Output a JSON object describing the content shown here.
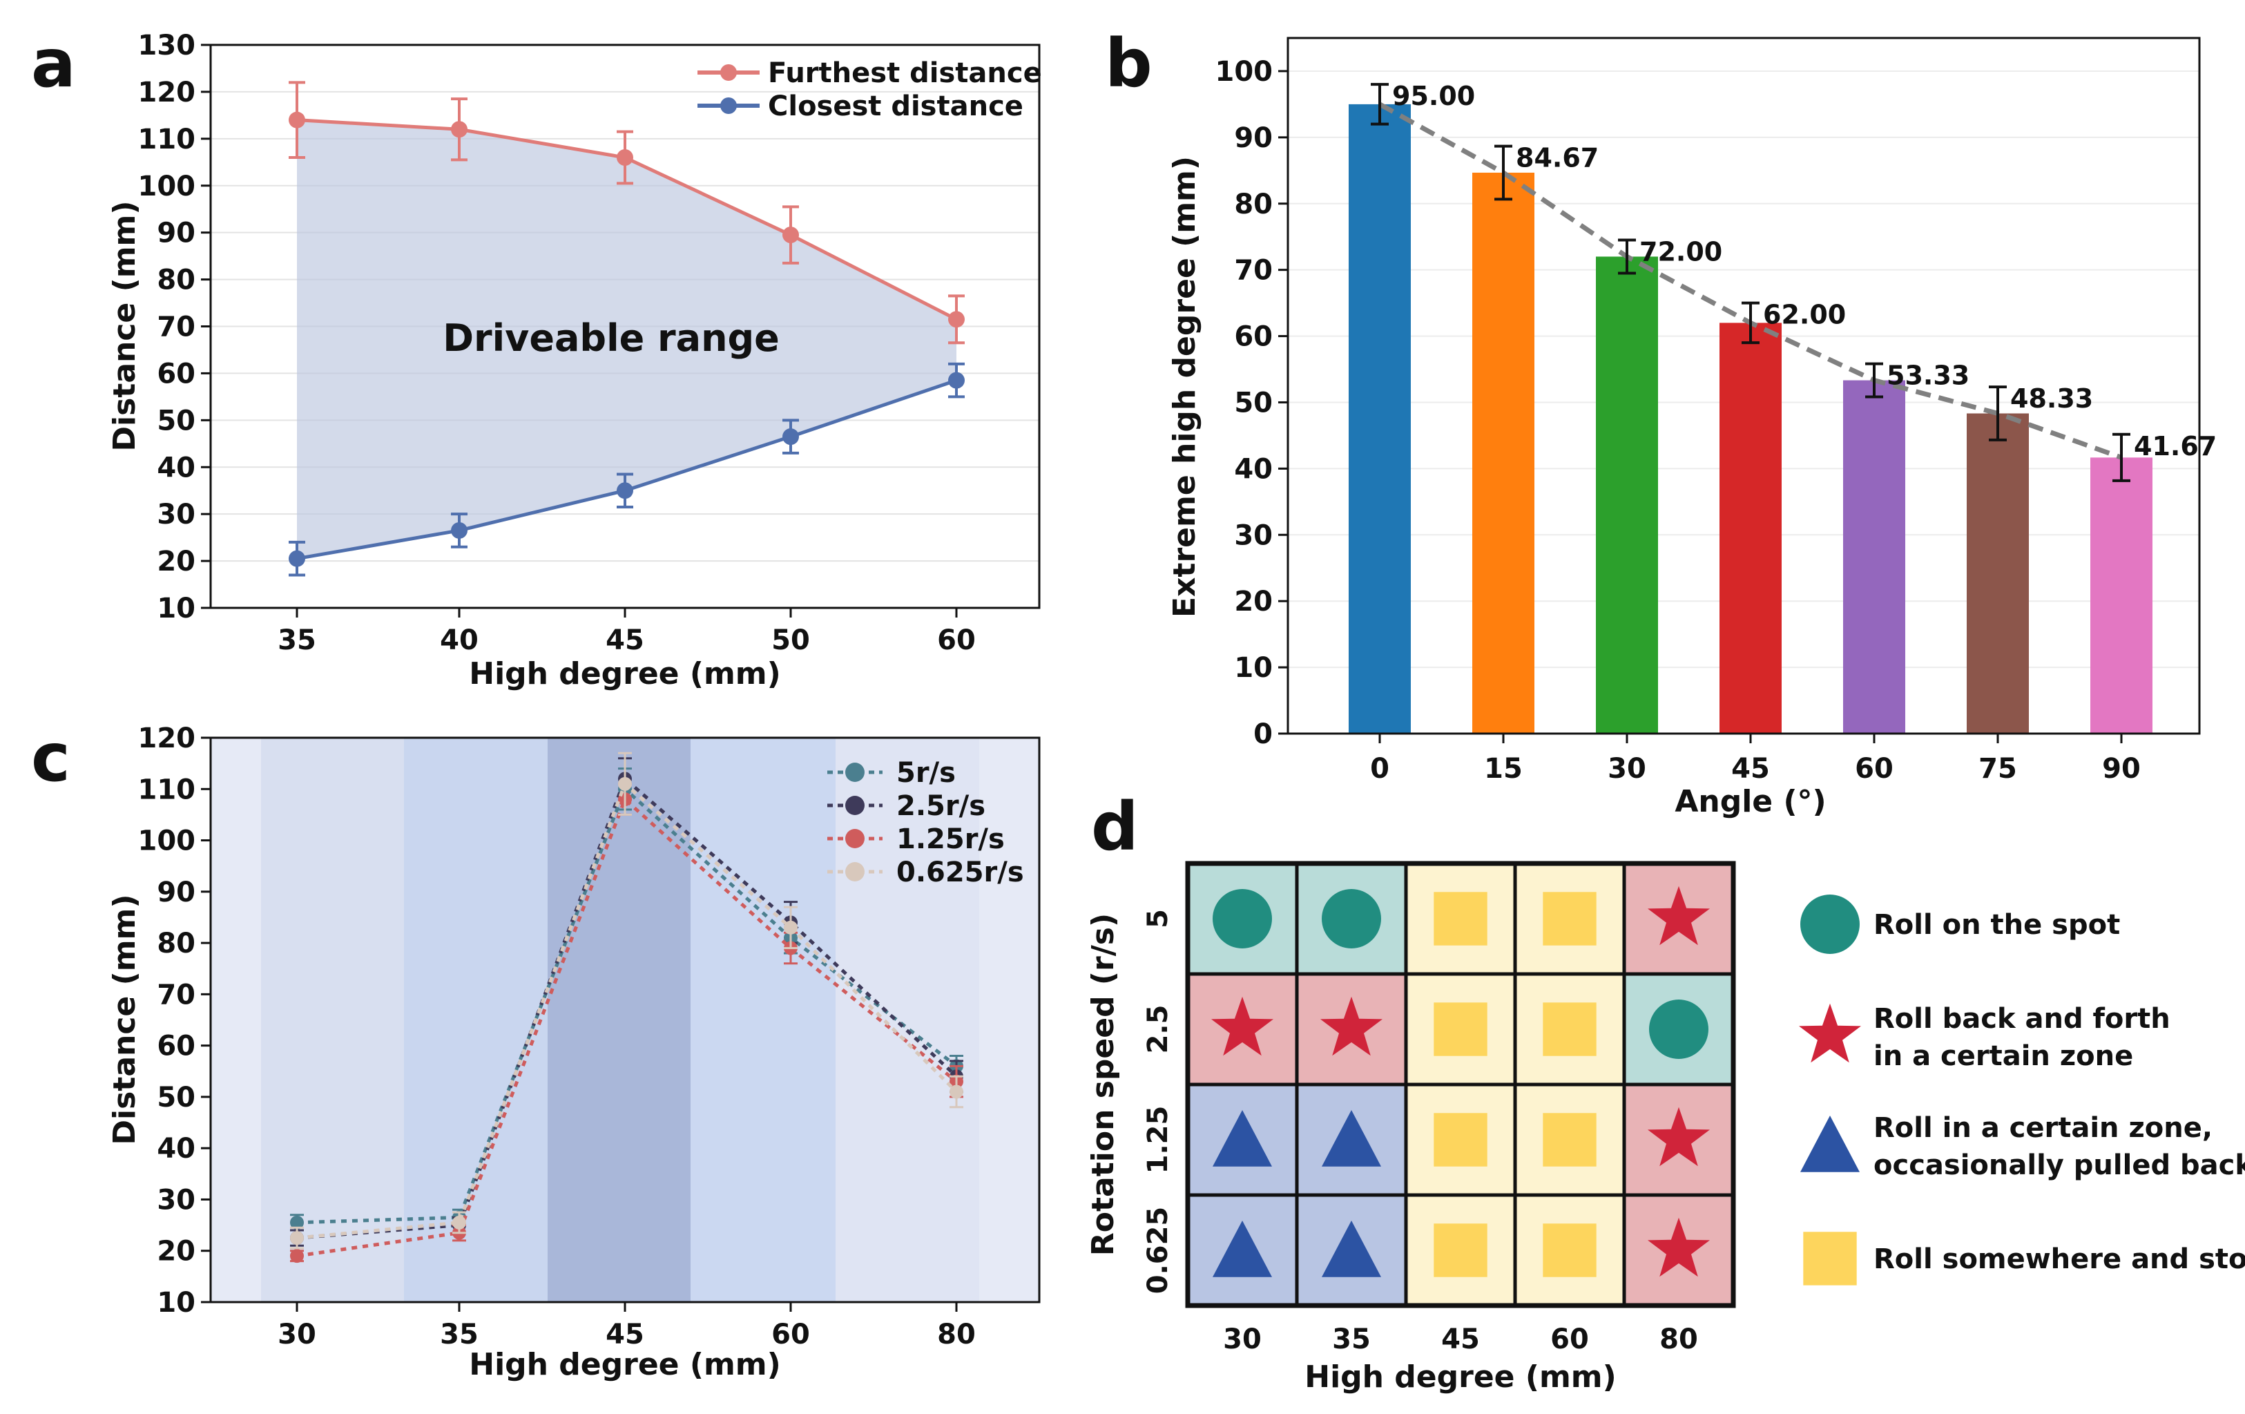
{
  "panel_labels": {
    "a": "a",
    "b": "b",
    "c": "c",
    "d": "d"
  },
  "chart_data": [
    {
      "panel": "a",
      "type": "line",
      "x_label": "High degree  (mm)",
      "y_label": "Distance  (mm)",
      "categories": [
        "35",
        "40",
        "45",
        "50",
        "60"
      ],
      "y_ticks": [
        10,
        20,
        30,
        40,
        50,
        60,
        70,
        80,
        90,
        100,
        110,
        120,
        130
      ],
      "ylim": [
        10,
        130
      ],
      "annotation": "Driveable range",
      "legend_position": "top-right",
      "series": [
        {
          "name": "Furthest distance",
          "color": "#e07b78",
          "values": [
            114,
            112,
            106,
            89.5,
            71.5
          ],
          "errors": [
            8,
            6.5,
            5.5,
            6,
            5
          ]
        },
        {
          "name": "Closest distance",
          "color": "#4f6fad",
          "values": [
            20.5,
            26.5,
            35,
            46.5,
            58.5
          ],
          "errors": [
            3.5,
            3.5,
            3.5,
            3.5,
            3.5
          ]
        }
      ]
    },
    {
      "panel": "b",
      "type": "bar",
      "x_label": "Angle (°)",
      "y_label": "Extreme high degree (mm)",
      "categories": [
        "0",
        "15",
        "30",
        "45",
        "60",
        "75",
        "90"
      ],
      "values": [
        95.0,
        84.67,
        72.0,
        62.0,
        53.33,
        48.33,
        41.67
      ],
      "value_labels": [
        "95.00",
        "84.67",
        "72.00",
        "62.00",
        "53.33",
        "48.33",
        "41.67"
      ],
      "errors": [
        3,
        4,
        2.5,
        3,
        2.5,
        4,
        3.5
      ],
      "colors": [
        "#1f77b4",
        "#ff7f0e",
        "#2ca02c",
        "#d62728",
        "#9467bd",
        "#8c564b",
        "#e377c2"
      ],
      "y_ticks": [
        0,
        10,
        20,
        30,
        40,
        50,
        60,
        70,
        80,
        90,
        100
      ],
      "ylim": [
        0,
        105
      ],
      "trend_line": "dashed gray through bar tops"
    },
    {
      "panel": "c",
      "type": "line",
      "x_label": "High degree  (mm)",
      "y_label": "Distance  (mm)",
      "categories": [
        "30",
        "35",
        "45",
        "60",
        "80"
      ],
      "y_ticks": [
        10,
        20,
        30,
        40,
        50,
        60,
        70,
        80,
        90,
        100,
        110,
        120
      ],
      "ylim": [
        10,
        120
      ],
      "legend_position": "top-right",
      "series": [
        {
          "name": "5r/s",
          "color": "#4b7f8f",
          "values": [
            25.5,
            26.5,
            110,
            81,
            56
          ],
          "errors": [
            1.5,
            1.5,
            4,
            3,
            2
          ]
        },
        {
          "name": "2.5r/s",
          "color": "#3e3a5a",
          "values": [
            22.5,
            25,
            112,
            84,
            54
          ],
          "errors": [
            1.5,
            1.5,
            4,
            4,
            3
          ]
        },
        {
          "name": "1.25r/s",
          "color": "#cf5c5c",
          "values": [
            19,
            23.5,
            108,
            79,
            53
          ],
          "errors": [
            1,
            1.5,
            3,
            3,
            3
          ]
        },
        {
          "name": "0.625r/s",
          "color": "#d8c8bc",
          "values": [
            22.5,
            25.5,
            111,
            83,
            51
          ],
          "errors": [
            2,
            2,
            6,
            4,
            3
          ]
        }
      ]
    },
    {
      "panel": "d",
      "type": "table",
      "x_label": "High degree (mm)",
      "y_label": "Rotation speed (r/s)",
      "columns": [
        "30",
        "35",
        "45",
        "60",
        "80"
      ],
      "rows": [
        "5",
        "2.5",
        "1.25",
        "0.625"
      ],
      "cells": [
        [
          "circle",
          "circle",
          "square",
          "square",
          "star"
        ],
        [
          "star",
          "star",
          "square",
          "square",
          "circle"
        ],
        [
          "triangle",
          "triangle",
          "square",
          "square",
          "star"
        ],
        [
          "triangle",
          "triangle",
          "square",
          "square",
          "star"
        ]
      ],
      "legend": [
        {
          "shape": "circle",
          "lines": [
            "Roll on the spot"
          ]
        },
        {
          "shape": "star",
          "lines": [
            "Roll back and forth",
            "in a certain zone"
          ]
        },
        {
          "shape": "triangle",
          "lines": [
            "Roll in a certain zone,",
            "occasionally pulled back"
          ]
        },
        {
          "shape": "square",
          "lines": [
            "Roll somewhere and stop"
          ]
        }
      ],
      "colors": {
        "circle": "#218d80",
        "circle_bg": "#b9dcd9",
        "star": "#d0243a",
        "star_bg": "#e8b3b6",
        "triangle": "#2c53a3",
        "triangle_bg": "#b8c5e3",
        "square": "#fdd55d",
        "square_bg": "#fdf3d0"
      }
    }
  ]
}
